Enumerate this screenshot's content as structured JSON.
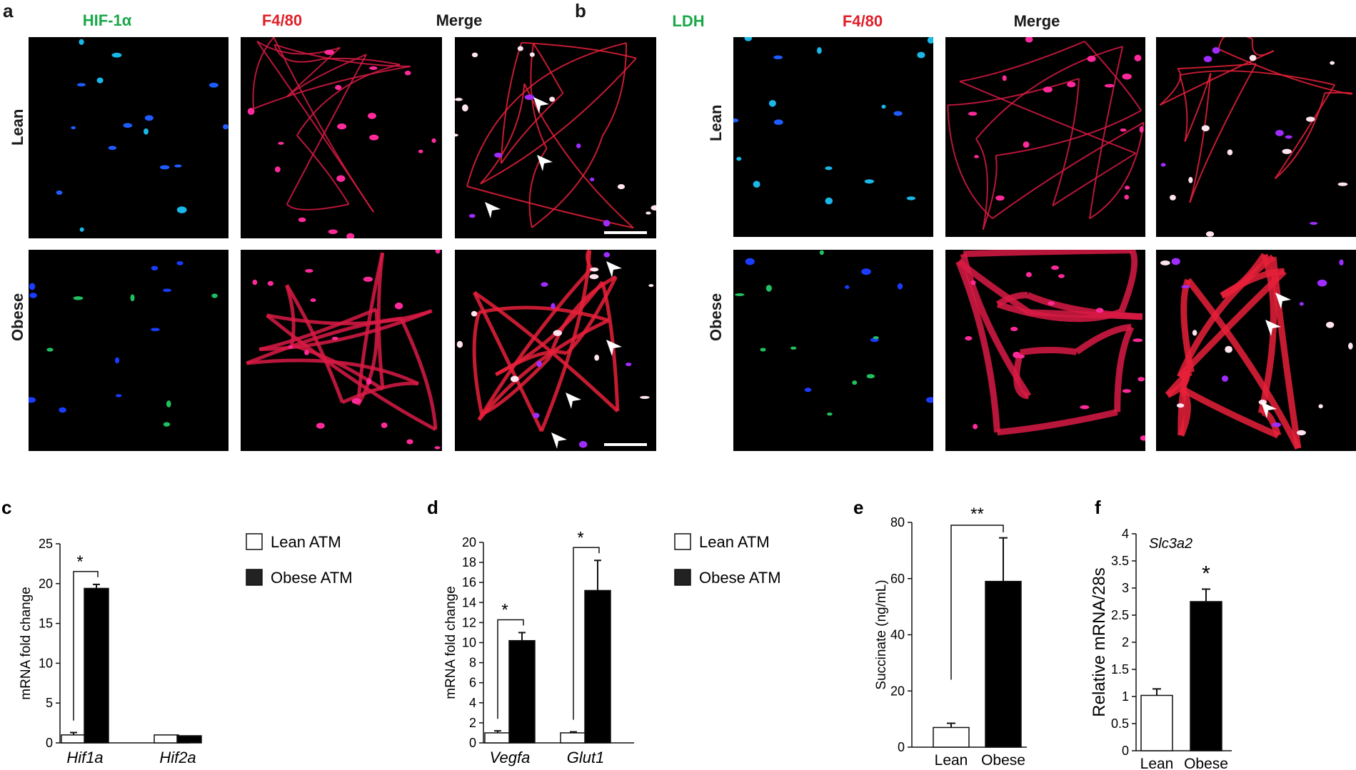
{
  "panel_a": {
    "letter": "a",
    "columns": [
      "HIF-1α",
      "F4/80",
      "Merge"
    ],
    "rows": [
      "Lean",
      "Obese"
    ]
  },
  "panel_b": {
    "letter": "b",
    "columns": [
      "LDH",
      "F4/80",
      "Merge"
    ],
    "rows": [
      "Lean",
      "Obese"
    ]
  },
  "colors": {
    "green_label": "#1aa84a",
    "red_label": "#e0202a",
    "black_label": "#1a1a1a"
  },
  "chart_data": [
    {
      "panel": "c",
      "type": "bar",
      "categories": [
        "Hif1a",
        "Hif2a"
      ],
      "series": [
        {
          "name": "Lean ATM",
          "values": [
            1.0,
            1.0
          ],
          "errors": [
            0.3,
            0
          ]
        },
        {
          "name": "Obese ATM",
          "values": [
            19.4,
            0.9
          ],
          "errors": [
            0.5,
            0
          ]
        }
      ],
      "ylabel": "mRNA fold change",
      "ylim": [
        0,
        25
      ],
      "yticks": [
        0,
        5,
        10,
        15,
        20,
        25
      ],
      "significance": [
        {
          "label": "*",
          "category": "Hif1a"
        }
      ],
      "legend_position": "right"
    },
    {
      "panel": "d",
      "type": "bar",
      "categories": [
        "Vegfa",
        "Glut1"
      ],
      "series": [
        {
          "name": "Lean ATM",
          "values": [
            1.0,
            1.0
          ],
          "errors": [
            0.2,
            0.1
          ]
        },
        {
          "name": "Obese ATM",
          "values": [
            10.2,
            15.2
          ],
          "errors": [
            0.8,
            3.0
          ]
        }
      ],
      "ylabel": "mRNA fold change",
      "ylim": [
        0,
        20
      ],
      "yticks": [
        0,
        2,
        4,
        6,
        8,
        10,
        12,
        14,
        16,
        18,
        20
      ],
      "significance": [
        {
          "label": "*",
          "category": "Vegfa"
        },
        {
          "label": "*",
          "category": "Glut1"
        }
      ],
      "legend_position": "right"
    },
    {
      "panel": "e",
      "type": "bar",
      "categories": [
        "Lean",
        "Obese"
      ],
      "values": [
        7,
        59
      ],
      "errors": [
        1.5,
        15.5
      ],
      "fills": [
        "#ffffff",
        "#000000"
      ],
      "ylabel": "Succinate (ng/mL)",
      "ylim": [
        0,
        80
      ],
      "yticks": [
        0,
        20,
        40,
        60,
        80
      ],
      "significance": [
        {
          "label": "**",
          "between": [
            "Lean",
            "Obese"
          ]
        }
      ]
    },
    {
      "panel": "f",
      "type": "bar",
      "categories": [
        "Lean",
        "Obese"
      ],
      "values": [
        1.02,
        2.75
      ],
      "errors": [
        0.12,
        0.23
      ],
      "fills": [
        "#ffffff",
        "#000000"
      ],
      "title": "Slc3a2",
      "ylabel": "Relative mRNA/28s",
      "ylim": [
        0,
        4
      ],
      "yticks": [
        "0",
        "0.5",
        "1",
        "1.5",
        "2",
        "2.5",
        "3",
        "3.5",
        "4"
      ],
      "significance": [
        {
          "label": "*",
          "category": "Obese"
        }
      ]
    }
  ]
}
